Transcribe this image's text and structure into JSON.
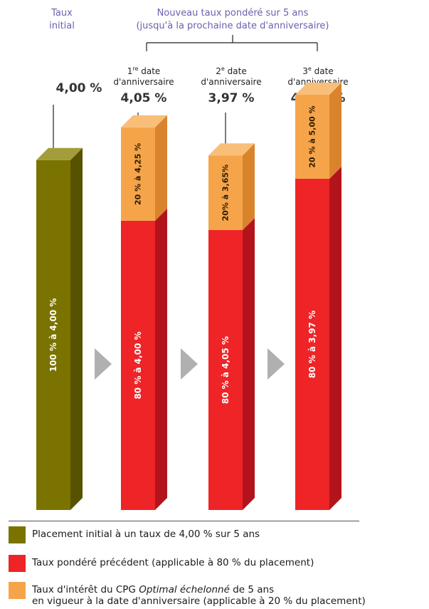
{
  "header": {
    "initial_label_line1": "Taux",
    "initial_label_line2": "initial",
    "group_label_line1": "Nouveau taux pondéré sur 5 ans",
    "group_label_line2": "(jusqu'à la prochaine date d'anniversaire)"
  },
  "colors": {
    "olive": "#7a7300",
    "olive_side": "#575200",
    "olive_top": "#a39c3a",
    "red": "#ee2427",
    "red_side": "#b3141c",
    "red_top": "#f25a5c",
    "orange": "#f6a44a",
    "orange_side": "#d9842c",
    "orange_top": "#f9be78",
    "arrow": "#b0b0b0",
    "header_text": "#6d5fae",
    "text": "#333333"
  },
  "chart_data": {
    "type": "bar",
    "stacked": true,
    "ylim": [
      0,
      100
    ],
    "categories": [
      "Taux initial",
      "1re date d'anniversaire",
      "2e date d'anniversaire",
      "3e date d'anniversaire"
    ],
    "bars": [
      {
        "id": "initial",
        "rate": "4,00 %",
        "label_sup": "",
        "label_line1": "",
        "label_line2": "",
        "total_height": 75,
        "segments": [
          {
            "kind": "olive",
            "value": 75,
            "label": "100 % à 4,00 %"
          }
        ]
      },
      {
        "id": "anniv1",
        "rate": "4,05 %",
        "label_sup": "re",
        "label_number": "1",
        "label_line1": " date",
        "label_line2": "d'anniversaire",
        "total_height": 82,
        "segments": [
          {
            "kind": "red",
            "value": 62,
            "label": "80 % à 4,00 %"
          },
          {
            "kind": "orange",
            "value": 20,
            "label": "20 % à 4,25 %"
          }
        ]
      },
      {
        "id": "anniv2",
        "rate": "3,97 %",
        "label_sup": "e",
        "label_number": "2",
        "label_line1": " date",
        "label_line2": "d'anniversaire",
        "total_height": 76,
        "segments": [
          {
            "kind": "red",
            "value": 60,
            "label": "80 % à 4,05 %"
          },
          {
            "kind": "orange",
            "value": 16,
            "label": "20% à 3,65%"
          }
        ]
      },
      {
        "id": "anniv3",
        "rate": "4,176 %",
        "label_sup": "e",
        "label_number": "3",
        "label_line1": " date",
        "label_line2": "d'anniversaire",
        "total_height": 89,
        "segments": [
          {
            "kind": "red",
            "value": 71,
            "label": "80 % à 3,97 %"
          },
          {
            "kind": "orange",
            "value": 18,
            "label": "20 % à 5,00 %"
          }
        ]
      }
    ]
  },
  "legend": {
    "item1": "Placement initial à un taux de 4,00 % sur 5 ans",
    "item2": "Taux pondéré précédent (applicable à 80 % du placement)",
    "item3_part1": "Taux d'intérêt du CPG ",
    "item3_italic": "Optimal échelonné",
    "item3_part2": " de 5 ans",
    "item3_line2": "en vigueur à la date d'anniversaire (applicable à 20 % du placement)"
  }
}
